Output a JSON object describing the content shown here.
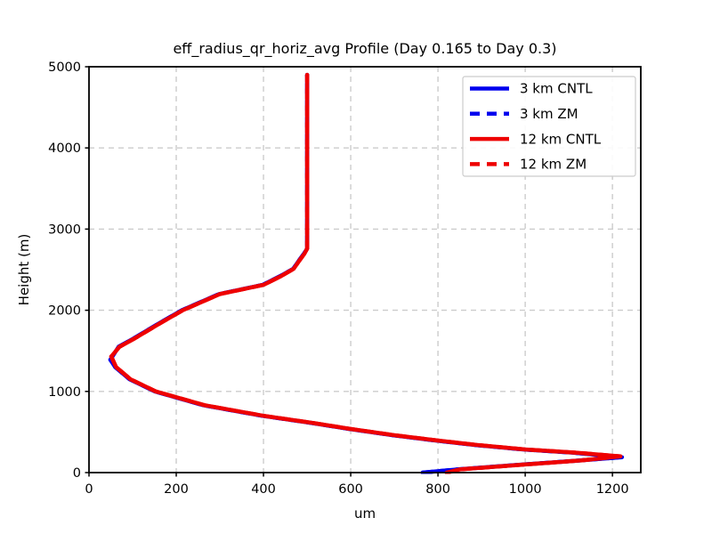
{
  "figure": {
    "title": "eff_radius_qr_horiz_avg Profile (Day 0.165 to Day 0.3)",
    "xlabel": "um",
    "ylabel": "Height (m)"
  },
  "chart_data": {
    "type": "line",
    "title": "eff_radius_qr_horiz_avg Profile (Day 0.165 to Day 0.3)",
    "xlabel": "um",
    "ylabel": "Height (m)",
    "xlim": [
      0,
      1265
    ],
    "ylim": [
      0,
      5000
    ],
    "xticks": [
      0,
      200,
      400,
      600,
      800,
      1000,
      1200
    ],
    "yticks": [
      0,
      1000,
      2000,
      3000,
      4000,
      5000
    ],
    "grid": true,
    "grid_color": "#cccccc",
    "axis_color": "#000000",
    "background": "#ffffff",
    "legend_position": "upper right",
    "series": [
      {
        "name": "3 km CNTL",
        "color": "#0000ee",
        "style": "solid",
        "heights_m": [
          0,
          40,
          100,
          150,
          190,
          245,
          285,
          340,
          395,
          460,
          537,
          614,
          700,
          830,
          1000,
          1150,
          1300,
          1390,
          1550,
          1655,
          1840,
          2000,
          2200,
          2313,
          2420,
          2510,
          2610,
          2697,
          2760,
          3000,
          3500,
          4000,
          4500,
          4900
        ],
        "values_um": [
          765,
          845,
          995,
          1128,
          1222,
          1112,
          995,
          885,
          795,
          696,
          597,
          507,
          397,
          262,
          151,
          93,
          60,
          49,
          68,
          103,
          161,
          213,
          298,
          398,
          438,
          468,
          481,
          493,
          500,
          500,
          500,
          500,
          500,
          500
        ]
      },
      {
        "name": "3 km ZM",
        "color": "#0000ee",
        "style": "dashed",
        "heights_m": [
          0,
          40,
          100,
          150,
          190,
          245,
          285,
          340,
          395,
          460,
          537,
          614,
          700,
          830,
          1000,
          1150,
          1300,
          1390,
          1550,
          1655,
          1840,
          2000,
          2200,
          2313,
          2420,
          2510,
          2610,
          2697,
          2760,
          3000,
          3500,
          4000,
          4500,
          4900
        ],
        "values_um": [
          765,
          845,
          995,
          1128,
          1222,
          1112,
          995,
          885,
          795,
          696,
          597,
          507,
          397,
          262,
          151,
          93,
          60,
          49,
          68,
          103,
          161,
          213,
          298,
          398,
          438,
          468,
          481,
          493,
          500,
          500,
          500,
          500,
          500,
          500
        ]
      },
      {
        "name": "12 km CNTL",
        "color": "#ee0000",
        "style": "solid",
        "heights_m": [
          0,
          40,
          100,
          150,
          200,
          245,
          285,
          340,
          395,
          460,
          537,
          614,
          700,
          830,
          1000,
          1150,
          1300,
          1430,
          1550,
          1655,
          1840,
          2000,
          2200,
          2313,
          2420,
          2510,
          2610,
          2697,
          2760,
          3000,
          3500,
          4000,
          4500,
          4900
        ],
        "values_um": [
          820,
          850,
          1000,
          1130,
          1218,
          1120,
          1000,
          890,
          800,
          700,
          600,
          510,
          400,
          265,
          153,
          95,
          62,
          51,
          70,
          105,
          163,
          215,
          300,
          400,
          440,
          469,
          482,
          494,
          500,
          500,
          500,
          500,
          500,
          500
        ]
      },
      {
        "name": "12 km ZM",
        "color": "#ee0000",
        "style": "dashed",
        "heights_m": [
          0,
          40,
          100,
          150,
          200,
          245,
          285,
          340,
          395,
          460,
          537,
          614,
          700,
          830,
          1000,
          1150,
          1300,
          1430,
          1550,
          1655,
          1840,
          2000,
          2200,
          2313,
          2420,
          2510,
          2610,
          2697,
          2760,
          3000,
          3500,
          4000,
          4500,
          4900
        ],
        "values_um": [
          820,
          850,
          1000,
          1130,
          1218,
          1120,
          1000,
          890,
          800,
          700,
          600,
          510,
          400,
          265,
          153,
          95,
          62,
          51,
          70,
          105,
          163,
          215,
          300,
          400,
          440,
          469,
          482,
          494,
          500,
          500,
          500,
          500,
          500,
          500
        ]
      }
    ]
  }
}
